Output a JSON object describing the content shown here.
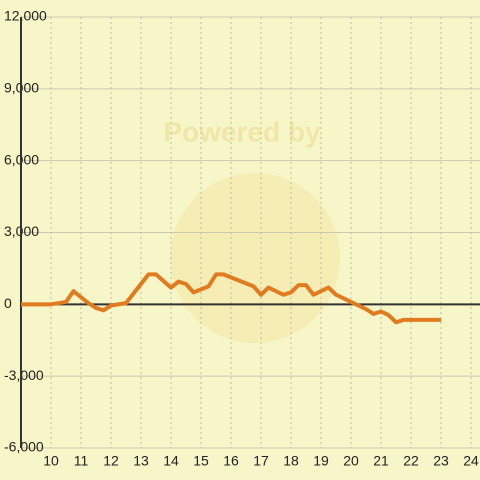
{
  "chart_data": {
    "type": "line",
    "watermark": "Powered by",
    "x": [
      9,
      10,
      10.5,
      10.75,
      11,
      11.25,
      11.5,
      11.75,
      12,
      12.5,
      13.25,
      13.5,
      14,
      14.25,
      14.5,
      14.75,
      15.25,
      15.5,
      15.75,
      16.25,
      16.75,
      17,
      17.25,
      17.75,
      18,
      18.25,
      18.5,
      18.75,
      19.25,
      19.5,
      20,
      20.5,
      20.75,
      21,
      21.25,
      21.5,
      21.75,
      23
    ],
    "series": [
      {
        "color": "#e07b20",
        "values": [
          0,
          0,
          100,
          550,
          300,
          50,
          -150,
          -250,
          -50,
          50,
          1250,
          1250,
          700,
          950,
          850,
          500,
          750,
          1250,
          1250,
          1000,
          750,
          400,
          700,
          400,
          500,
          800,
          800,
          400,
          700,
          400,
          100,
          -200,
          -400,
          -300,
          -450,
          -750,
          -650,
          -650
        ]
      }
    ],
    "xlim": [
      9,
      24
    ],
    "xticks": [
      10,
      11,
      12,
      13,
      14,
      15,
      16,
      17,
      18,
      19,
      20,
      21,
      22,
      23,
      24
    ],
    "ylim": [
      -6000,
      12000
    ],
    "yticks": [
      {
        "value": -6000,
        "label": "-6,000"
      },
      {
        "value": -3000,
        "label": "-3,000"
      },
      0,
      {
        "value": 3000,
        "label": "3,000"
      },
      {
        "value": 6000,
        "label": "6,000"
      },
      {
        "value": 9000,
        "label": "9,000"
      },
      {
        "value": 12000,
        "label": "12,000"
      }
    ],
    "grid": true
  }
}
